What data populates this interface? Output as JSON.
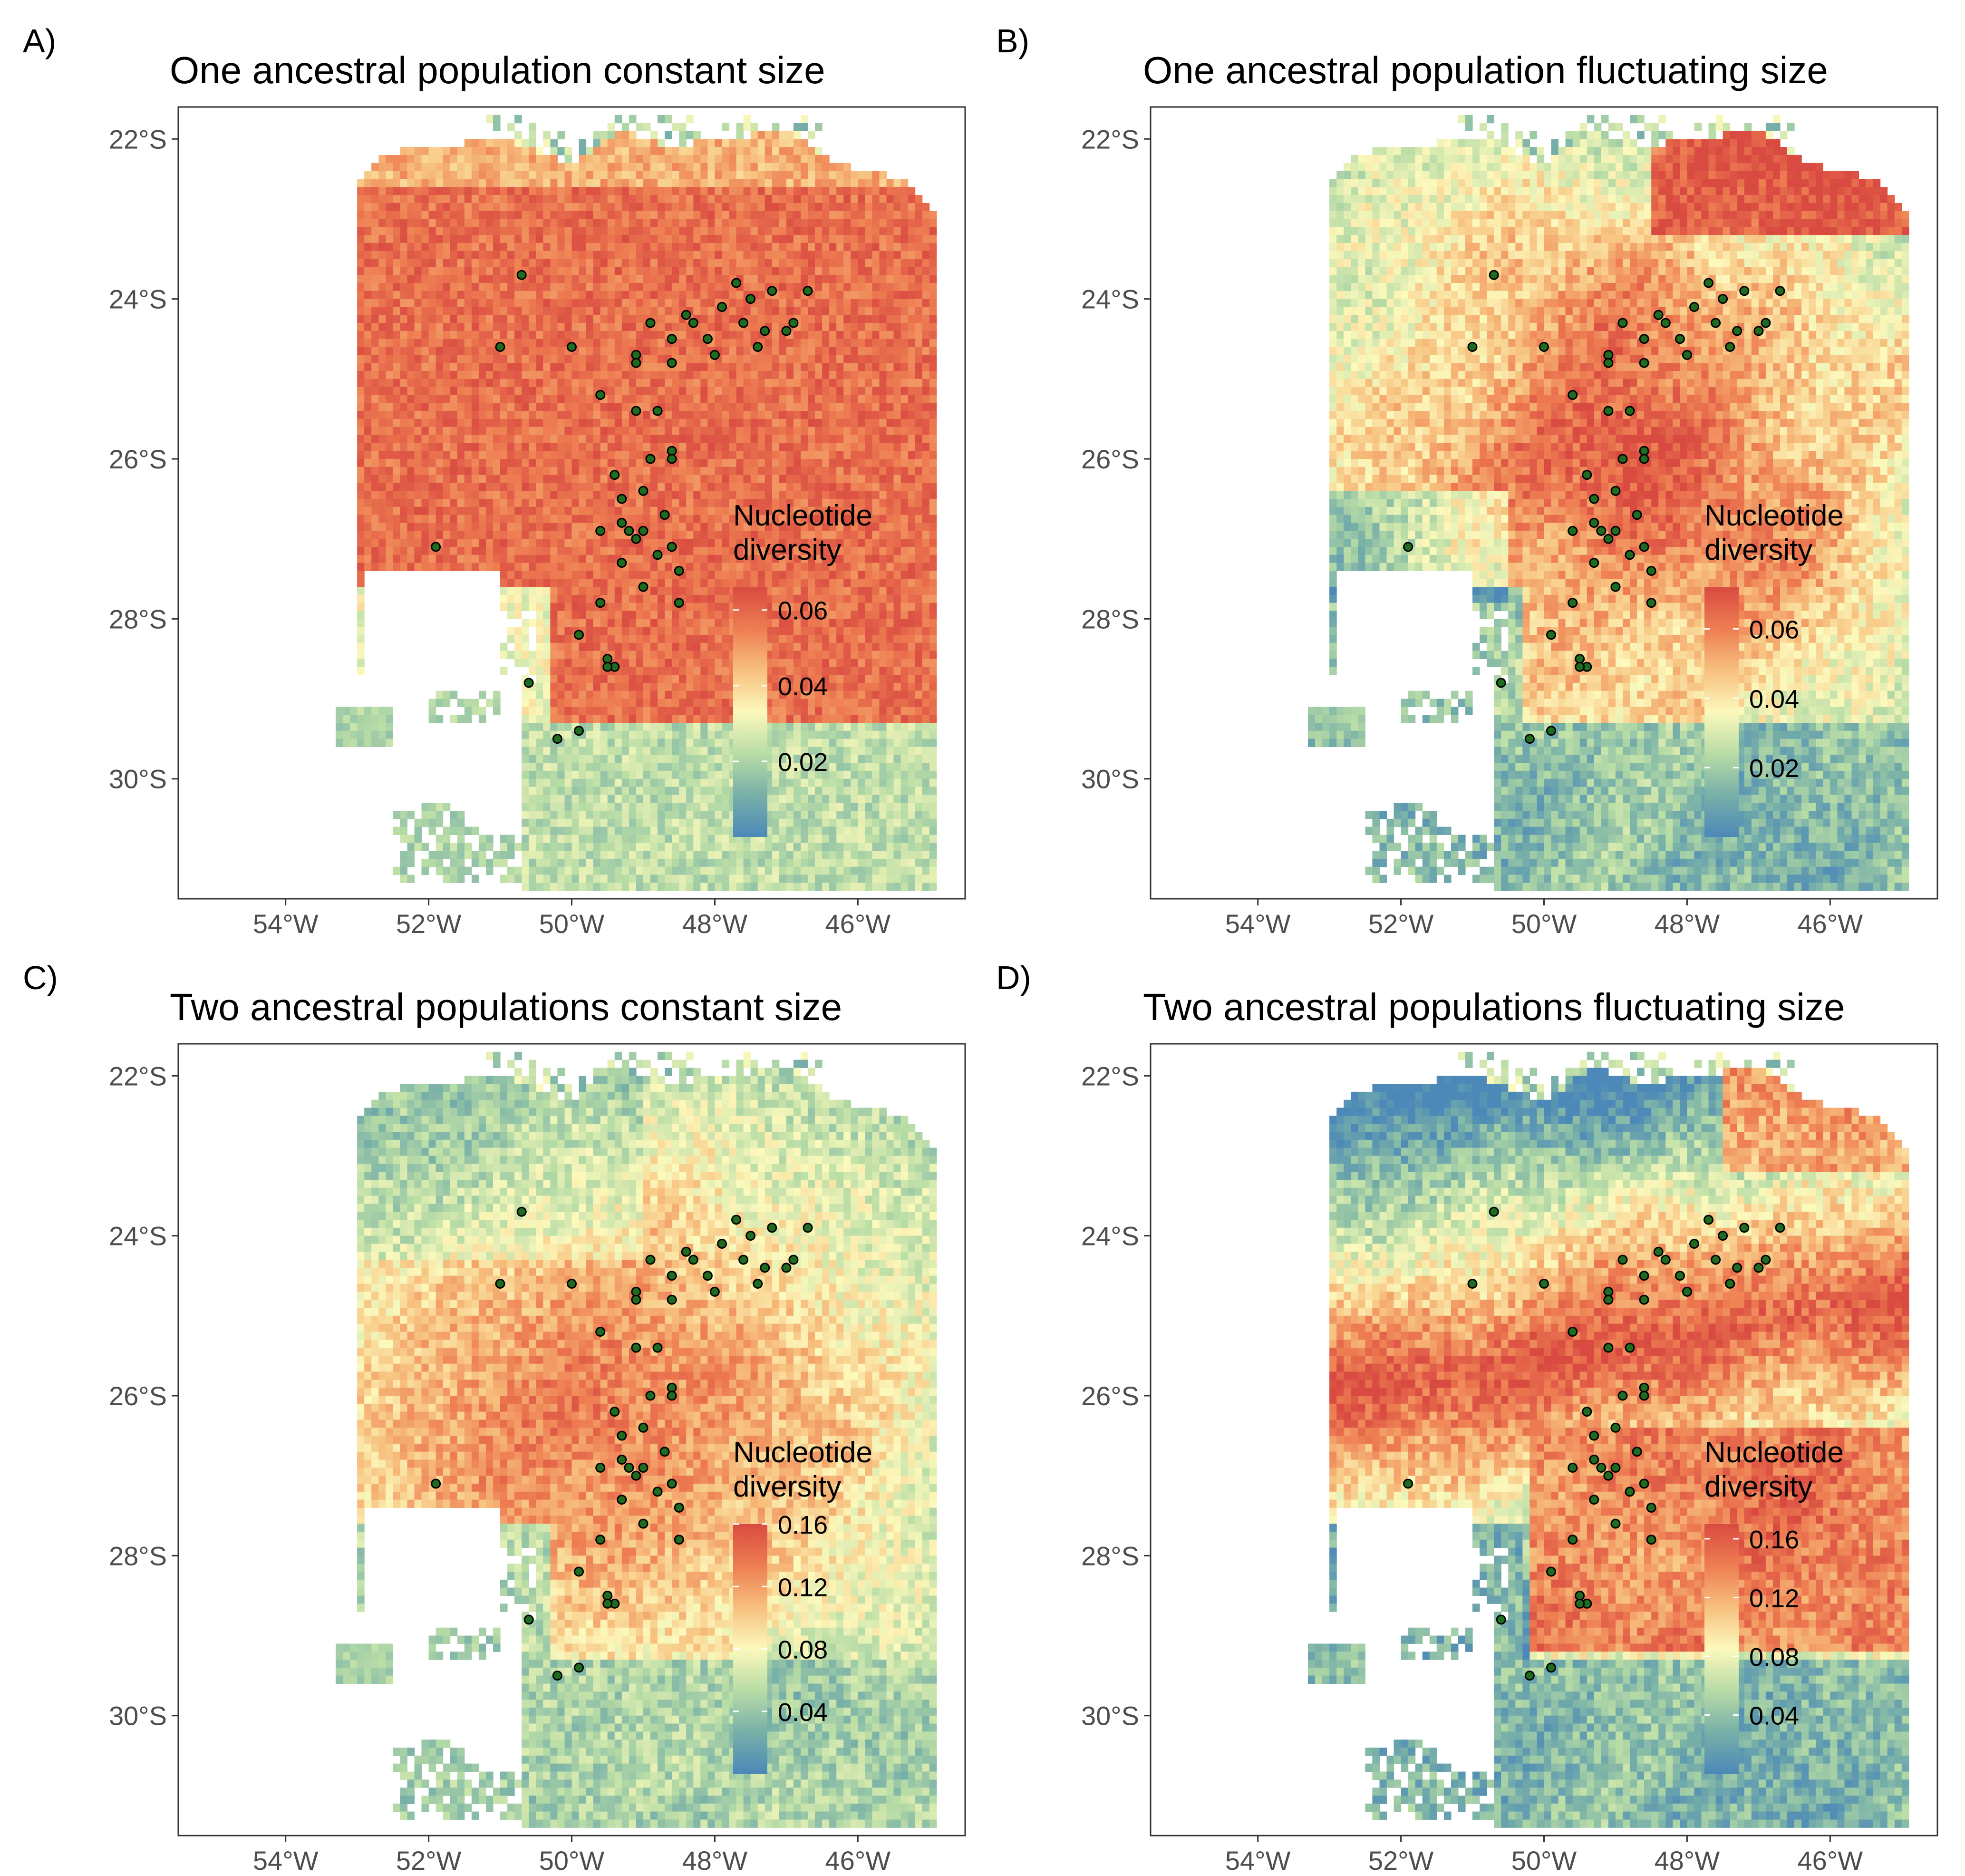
{
  "figure": {
    "panels": [
      {
        "id": "A",
        "tag": "A)",
        "title": "One ancestral population constant size",
        "legend_title_lines": [
          "Nucleotide",
          "diversity"
        ],
        "legend_ticks": [
          "0.06",
          "0.04",
          "0.02"
        ],
        "legend_values": [
          0.06,
          0.04,
          0.02
        ],
        "scale_range": [
          0.0,
          0.066
        ],
        "pattern": "one_constant"
      },
      {
        "id": "B",
        "tag": "B)",
        "title": "One ancestral population fluctuating size",
        "legend_title_lines": [
          "Nucleotide",
          "diversity"
        ],
        "legend_ticks": [
          "0.06",
          "0.04",
          "0.02"
        ],
        "legend_values": [
          0.06,
          0.04,
          0.02
        ],
        "scale_range": [
          0.0,
          0.072
        ],
        "pattern": "one_fluctuating"
      },
      {
        "id": "C",
        "tag": "C)",
        "title": "Two ancestral populations constant size",
        "legend_title_lines": [
          "Nucleotide",
          "diversity"
        ],
        "legend_ticks": [
          "0.16",
          "0.12",
          "0.08",
          "0.04"
        ],
        "legend_values": [
          0.16,
          0.12,
          0.08,
          0.04
        ],
        "scale_range": [
          0.0,
          0.16
        ],
        "pattern": "two_constant"
      },
      {
        "id": "D",
        "tag": "D)",
        "title": "Two ancestral populations fluctuating size",
        "legend_title_lines": [
          "Nucleotide",
          "diversity"
        ],
        "legend_ticks": [
          "0.16",
          "0.12",
          "0.08",
          "0.04"
        ],
        "legend_values": [
          0.16,
          0.12,
          0.08,
          0.04
        ],
        "scale_range": [
          0.0,
          0.17
        ],
        "pattern": "two_fluctuating"
      }
    ],
    "lat_ticks": [
      {
        "value": -22,
        "label": "22°S"
      },
      {
        "value": -24,
        "label": "24°S"
      },
      {
        "value": -26,
        "label": "26°S"
      },
      {
        "value": -28,
        "label": "28°S"
      },
      {
        "value": -30,
        "label": "30°S"
      }
    ],
    "lon_ticks": [
      {
        "value": -54,
        "label": "54°W"
      },
      {
        "value": -52,
        "label": "52°W"
      },
      {
        "value": -50,
        "label": "50°W"
      },
      {
        "value": -48,
        "label": "48°W"
      },
      {
        "value": -46,
        "label": "46°W"
      }
    ],
    "extent": {
      "lon": [
        -55.5,
        -44.5
      ],
      "lat": [
        -31.5,
        -21.6
      ]
    },
    "colors": {
      "palette": [
        "#4c88b8",
        "#78b0a8",
        "#b8dca6",
        "#fcf9bc",
        "#f7c07e",
        "#ee7d52",
        "#d94b41"
      ],
      "sample_point": "#1f6b1f"
    },
    "sampling_points": [
      [
        -50.7,
        -23.7
      ],
      [
        -51.0,
        -24.6
      ],
      [
        -50.0,
        -24.6
      ],
      [
        -49.1,
        -24.7
      ],
      [
        -49.1,
        -24.8
      ],
      [
        -48.9,
        -24.3
      ],
      [
        -48.6,
        -24.5
      ],
      [
        -48.6,
        -24.8
      ],
      [
        -48.4,
        -24.2
      ],
      [
        -48.3,
        -24.3
      ],
      [
        -48.1,
        -24.5
      ],
      [
        -47.9,
        -24.1
      ],
      [
        -47.7,
        -23.8
      ],
      [
        -47.6,
        -24.3
      ],
      [
        -47.5,
        -24.0
      ],
      [
        -47.3,
        -24.4
      ],
      [
        -47.2,
        -23.9
      ],
      [
        -47.0,
        -24.4
      ],
      [
        -46.9,
        -24.3
      ],
      [
        -46.7,
        -23.9
      ],
      [
        -47.4,
        -24.6
      ],
      [
        -48.0,
        -24.7
      ],
      [
        -49.6,
        -25.2
      ],
      [
        -49.1,
        -25.4
      ],
      [
        -48.8,
        -25.4
      ],
      [
        -48.6,
        -25.9
      ],
      [
        -48.6,
        -26.0
      ],
      [
        -48.9,
        -26.0
      ],
      [
        -49.4,
        -26.2
      ],
      [
        -49.3,
        -26.5
      ],
      [
        -49.0,
        -26.4
      ],
      [
        -48.7,
        -26.7
      ],
      [
        -49.6,
        -26.9
      ],
      [
        -49.3,
        -26.8
      ],
      [
        -49.2,
        -26.9
      ],
      [
        -49.1,
        -27.0
      ],
      [
        -49.0,
        -26.9
      ],
      [
        -48.6,
        -27.1
      ],
      [
        -48.8,
        -27.2
      ],
      [
        -48.5,
        -27.4
      ],
      [
        -49.3,
        -27.3
      ],
      [
        -49.0,
        -27.6
      ],
      [
        -48.5,
        -27.8
      ],
      [
        -49.6,
        -27.8
      ],
      [
        -49.9,
        -28.2
      ],
      [
        -49.5,
        -28.5
      ],
      [
        -49.4,
        -28.6
      ],
      [
        -49.5,
        -28.6
      ],
      [
        -50.6,
        -28.8
      ],
      [
        -49.9,
        -29.4
      ],
      [
        -50.2,
        -29.5
      ],
      [
        -51.9,
        -27.1
      ]
    ]
  }
}
